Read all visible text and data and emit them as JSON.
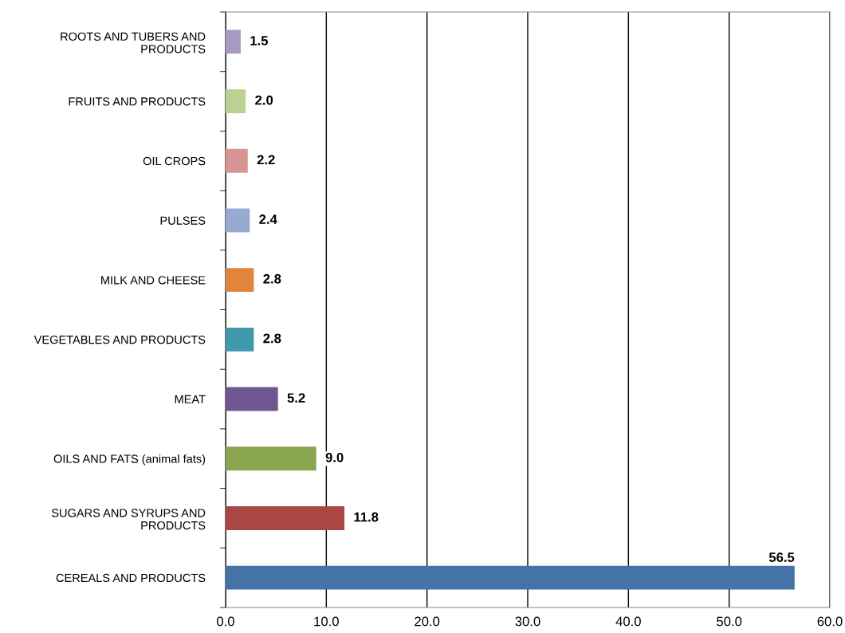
{
  "chart_data": {
    "type": "bar",
    "orientation": "horizontal",
    "categories": [
      "ROOTS AND TUBERS AND\nPRODUCTS",
      "FRUITS AND PRODUCTS",
      "OIL CROPS",
      "PULSES",
      "MILK AND CHEESE",
      "VEGETABLES AND PRODUCTS",
      "MEAT",
      "OILS AND FATS (animal fats)",
      "SUGARS AND SYRUPS AND\nPRODUCTS",
      "CEREALS AND PRODUCTS"
    ],
    "values": [
      1.5,
      2.0,
      2.2,
      2.4,
      2.8,
      2.8,
      5.2,
      9.0,
      11.8,
      56.5
    ],
    "colors": [
      "#a899c4",
      "#b9d193",
      "#d69592",
      "#97aad3",
      "#e0853a",
      "#4199ae",
      "#6f5891",
      "#89a54e",
      "#aa4644",
      "#4572a7"
    ],
    "xlim": [
      0,
      60
    ],
    "xticks": [
      {
        "value": 0,
        "label": "0.0"
      },
      {
        "value": 10,
        "label": "10.0"
      },
      {
        "value": 20,
        "label": "20.0"
      },
      {
        "value": 30,
        "label": "30.0"
      },
      {
        "value": 40,
        "label": "40.0"
      },
      {
        "value": 50,
        "label": "50.0"
      },
      {
        "value": 60,
        "label": "60.0"
      }
    ],
    "value_labels": [
      "1.5",
      "2.0",
      "2.2",
      "2.4",
      "2.8",
      "2.8",
      "5.2",
      "9.0",
      "11.8",
      "56.5"
    ],
    "grid": "x"
  }
}
